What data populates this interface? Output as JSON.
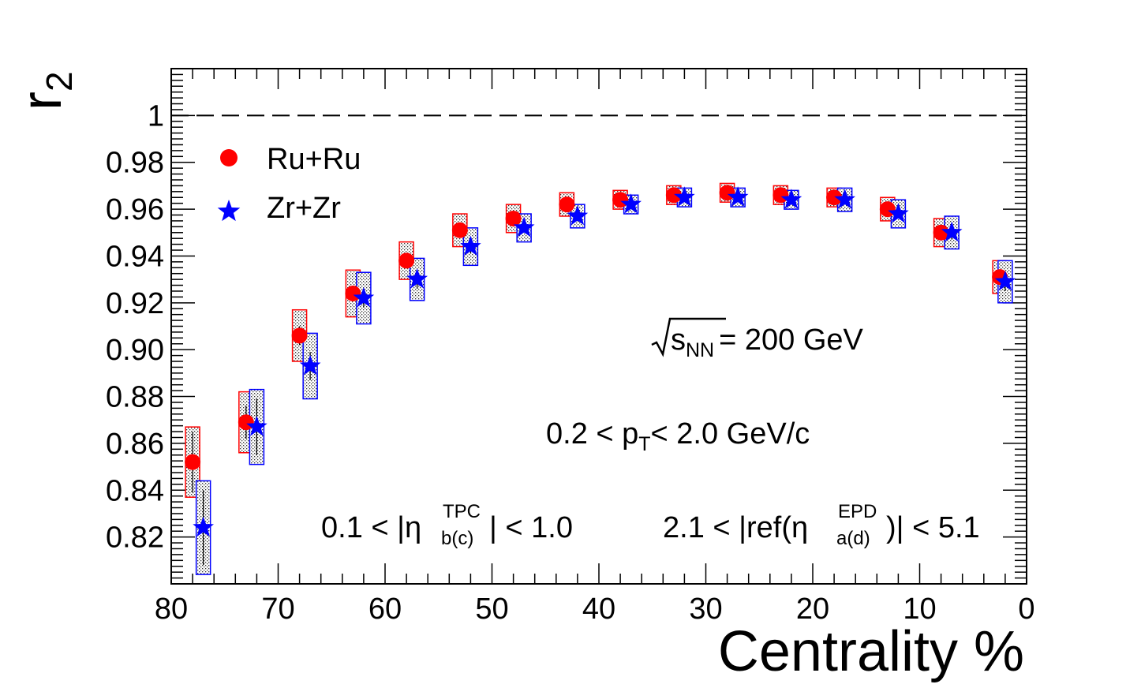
{
  "chart_data": {
    "type": "scatter",
    "xlabel": "Centrality %",
    "ylabel": "r",
    "ylabel_sub": "2",
    "xlim": [
      80,
      0
    ],
    "ylim": [
      0.8,
      1.02
    ],
    "x_ticks": [
      80,
      70,
      60,
      50,
      40,
      30,
      20,
      10,
      0
    ],
    "x_tick_labels": [
      "80",
      "70",
      "60",
      "50",
      "40",
      "30",
      "20",
      "10",
      "0"
    ],
    "y_ticks": [
      0.82,
      0.84,
      0.86,
      0.88,
      0.9,
      0.92,
      0.94,
      0.96,
      0.98,
      1.0
    ],
    "y_tick_labels": [
      "0.82",
      "0.84",
      "0.86",
      "0.88",
      "0.90",
      "0.92",
      "0.94",
      "0.96",
      "0.98",
      "1"
    ],
    "reference_line": 1.0,
    "series": [
      {
        "name": "Ru+Ru",
        "marker": "circle",
        "color": "#ff0000",
        "x": [
          78,
          73,
          68,
          63,
          58,
          53,
          48,
          43,
          38,
          33,
          28,
          23,
          18,
          13,
          8,
          2.5
        ],
        "y": [
          0.852,
          0.869,
          0.906,
          0.924,
          0.938,
          0.951,
          0.956,
          0.962,
          0.964,
          0.966,
          0.967,
          0.966,
          0.965,
          0.96,
          0.95,
          0.931
        ],
        "stat_err": [
          0.013,
          0.007,
          0.004,
          0.003,
          0.003,
          0.002,
          0.002,
          0.002,
          0.002,
          0.002,
          0.002,
          0.002,
          0.002,
          0.002,
          0.002,
          0.003
        ],
        "sys_err": [
          0.015,
          0.013,
          0.011,
          0.01,
          0.008,
          0.007,
          0.006,
          0.005,
          0.004,
          0.004,
          0.004,
          0.004,
          0.004,
          0.005,
          0.006,
          0.007
        ]
      },
      {
        "name": "Zr+Zr",
        "marker": "star",
        "color": "#0000ff",
        "x": [
          77,
          72,
          67,
          62,
          57,
          52,
          47,
          42,
          37,
          32,
          27,
          22,
          17,
          12,
          7,
          2
        ],
        "y": [
          0.824,
          0.867,
          0.893,
          0.922,
          0.93,
          0.944,
          0.952,
          0.957,
          0.962,
          0.965,
          0.965,
          0.964,
          0.964,
          0.958,
          0.95,
          0.929
        ],
        "stat_err": [
          0.016,
          0.012,
          0.006,
          0.004,
          0.004,
          0.003,
          0.002,
          0.002,
          0.002,
          0.002,
          0.002,
          0.002,
          0.002,
          0.002,
          0.003,
          0.004
        ],
        "sys_err": [
          0.02,
          0.016,
          0.014,
          0.011,
          0.009,
          0.008,
          0.006,
          0.005,
          0.004,
          0.004,
          0.004,
          0.004,
          0.005,
          0.006,
          0.007,
          0.009
        ]
      }
    ],
    "legend": [
      "Ru+Ru",
      "Zr+Zr"
    ],
    "legend_position": "top-left",
    "annotations": {
      "energy": {
        "prefix": "s",
        "sub": "NN",
        "suffix": "= 200 GeV"
      },
      "pt": {
        "prefix": "0.2 < p",
        "sub": "T",
        "suffix": "< 2.0 GeV/c"
      },
      "eta_tpc": {
        "prefix": "0.1 < |η",
        "sup": "TPC",
        "sub": "b(c)",
        "suffix": "| < 1.0"
      },
      "eta_epd": {
        "prefix": "2.1 < |ref(η",
        "sup": "EPD",
        "sub": "a(d)",
        "suffix": ")| < 5.1"
      }
    }
  }
}
